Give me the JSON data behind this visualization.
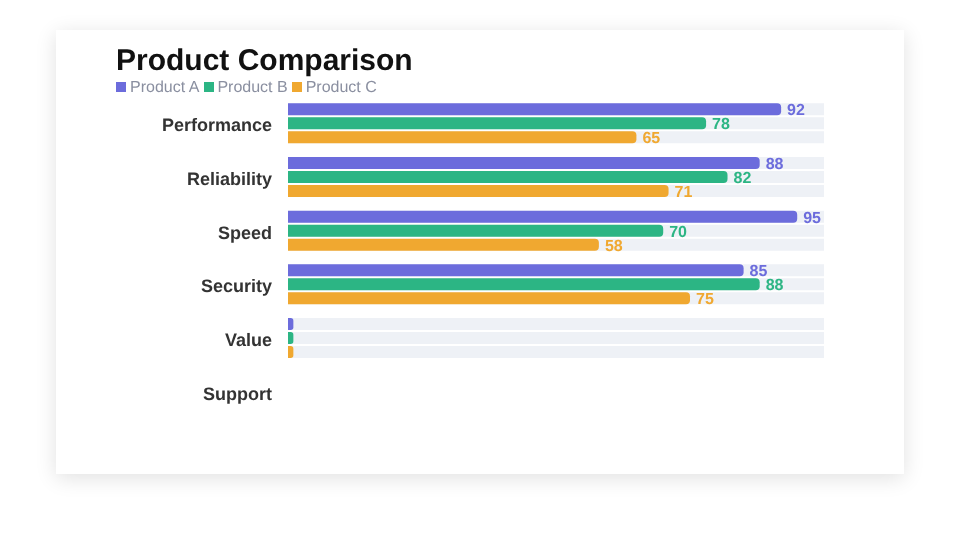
{
  "chart_data": {
    "type": "bar",
    "orientation": "horizontal",
    "title": "Product Comparison",
    "categories": [
      "Performance",
      "Reliability",
      "Speed",
      "Security",
      "Value",
      "Support"
    ],
    "series": [
      {
        "name": "Product A",
        "color": "#6c6cdc",
        "values": [
          92,
          88,
          95,
          85,
          1,
          null
        ],
        "value_labels": [
          "92",
          "88",
          "95",
          "85",
          null,
          null
        ]
      },
      {
        "name": "Product B",
        "color": "#2cb584",
        "values": [
          78,
          82,
          70,
          88,
          1,
          null
        ],
        "value_labels": [
          "78",
          "82",
          "70",
          "88",
          null,
          null
        ]
      },
      {
        "name": "Product C",
        "color": "#f0a830",
        "values": [
          65,
          71,
          58,
          75,
          1,
          null
        ],
        "value_labels": [
          "65",
          "71",
          "58",
          "75",
          null,
          null
        ]
      }
    ],
    "xlim": [
      0,
      100
    ],
    "tick_labels": "y",
    "legend": "top left",
    "grid": false
  }
}
